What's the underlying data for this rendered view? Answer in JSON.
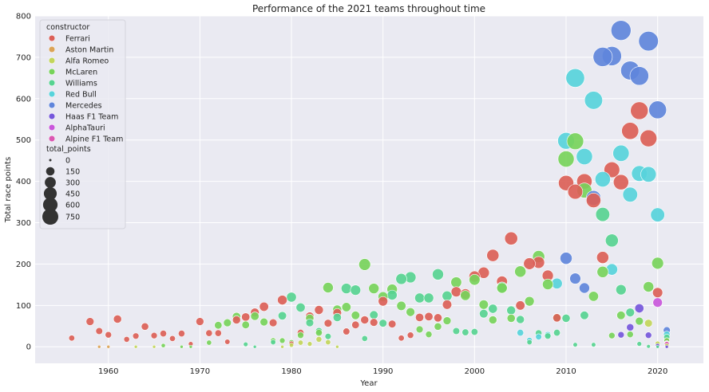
{
  "chart_data": {
    "type": "scatter",
    "title": "Performance of the 2021 teams throughout time",
    "xlabel": "Year",
    "ylabel": "Total race points",
    "xlim": [
      1952,
      2025
    ],
    "ylim": [
      -40,
      800
    ],
    "xticks": [
      1960,
      1970,
      1980,
      1990,
      2000,
      2010,
      2020
    ],
    "yticks": [
      0,
      100,
      200,
      300,
      400,
      500,
      600,
      700,
      800
    ],
    "grid": true,
    "background": "#eaeaf2",
    "legend": {
      "position": "top-left",
      "hue_title": "constructor",
      "size_title": "total_points",
      "size_values": [
        0,
        150,
        300,
        450,
        600,
        750
      ]
    },
    "series": [
      {
        "name": "Ferrari",
        "color": "#db5f57",
        "points": [
          [
            1956,
            21
          ],
          [
            1958,
            61
          ],
          [
            1959,
            38
          ],
          [
            1960,
            29
          ],
          [
            1961,
            67
          ],
          [
            1962,
            18
          ],
          [
            1963,
            26
          ],
          [
            1964,
            49
          ],
          [
            1965,
            27
          ],
          [
            1966,
            32
          ],
          [
            1967,
            20
          ],
          [
            1968,
            32
          ],
          [
            1969,
            7
          ],
          [
            1970,
            61
          ],
          [
            1971,
            33
          ],
          [
            1972,
            33
          ],
          [
            1973,
            12
          ],
          [
            1974,
            65
          ],
          [
            1975,
            72
          ],
          [
            1976,
            83
          ],
          [
            1977,
            97
          ],
          [
            1978,
            58
          ],
          [
            1979,
            113
          ],
          [
            1980,
            8
          ],
          [
            1981,
            34
          ],
          [
            1982,
            74
          ],
          [
            1983,
            89
          ],
          [
            1984,
            57
          ],
          [
            1985,
            82
          ],
          [
            1986,
            37
          ],
          [
            1987,
            53
          ],
          [
            1988,
            65
          ],
          [
            1989,
            59
          ],
          [
            1990,
            110
          ],
          [
            1991,
            55
          ],
          [
            1992,
            21
          ],
          [
            1993,
            28
          ],
          [
            1994,
            71
          ],
          [
            1995,
            73
          ],
          [
            1996,
            70
          ],
          [
            1997,
            102
          ],
          [
            1998,
            133
          ],
          [
            1999,
            128
          ],
          [
            2000,
            170
          ],
          [
            2001,
            179
          ],
          [
            2002,
            221
          ],
          [
            2003,
            158
          ],
          [
            2004,
            262
          ],
          [
            2005,
            100
          ],
          [
            2006,
            201
          ],
          [
            2007,
            204
          ],
          [
            2008,
            172
          ],
          [
            2009,
            70
          ],
          [
            2010,
            396
          ],
          [
            2011,
            375
          ],
          [
            2012,
            400
          ],
          [
            2013,
            354
          ],
          [
            2014,
            216
          ],
          [
            2015,
            428
          ],
          [
            2016,
            398
          ],
          [
            2017,
            522
          ],
          [
            2018,
            571
          ],
          [
            2019,
            504
          ],
          [
            2020,
            131
          ],
          [
            2021,
            15
          ]
        ]
      },
      {
        "name": "Aston Martin",
        "color": "#dba357",
        "points": [
          [
            1959,
            0
          ],
          [
            1960,
            0
          ],
          [
            2021,
            8
          ]
        ]
      },
      {
        "name": "Alfa Romeo",
        "color": "#c2d55b",
        "points": [
          [
            1963,
            0
          ],
          [
            1965,
            0
          ],
          [
            1979,
            0
          ],
          [
            1980,
            4
          ],
          [
            1981,
            10
          ],
          [
            1982,
            7
          ],
          [
            1983,
            18
          ],
          [
            1984,
            11
          ],
          [
            1985,
            0
          ],
          [
            2019,
            57
          ],
          [
            2020,
            8
          ],
          [
            2021,
            3
          ]
        ]
      },
      {
        "name": "McLaren",
        "color": "#77d35b",
        "points": [
          [
            1966,
            3
          ],
          [
            1968,
            0
          ],
          [
            1969,
            0
          ],
          [
            1971,
            10
          ],
          [
            1972,
            52
          ],
          [
            1973,
            58
          ],
          [
            1974,
            73
          ],
          [
            1975,
            53
          ],
          [
            1976,
            74
          ],
          [
            1977,
            60
          ],
          [
            1978,
            15
          ],
          [
            1979,
            15
          ],
          [
            1980,
            11
          ],
          [
            1981,
            28
          ],
          [
            1982,
            69
          ],
          [
            1983,
            34
          ],
          [
            1984,
            143
          ],
          [
            1985,
            90
          ],
          [
            1986,
            96
          ],
          [
            1987,
            76
          ],
          [
            1988,
            199
          ],
          [
            1989,
            141
          ],
          [
            1990,
            121
          ],
          [
            1991,
            139
          ],
          [
            1992,
            99
          ],
          [
            1993,
            84
          ],
          [
            1994,
            42
          ],
          [
            1995,
            30
          ],
          [
            1996,
            49
          ],
          [
            1997,
            63
          ],
          [
            1998,
            156
          ],
          [
            1999,
            124
          ],
          [
            2000,
            162
          ],
          [
            2001,
            102
          ],
          [
            2002,
            65
          ],
          [
            2003,
            142
          ],
          [
            2004,
            69
          ],
          [
            2005,
            182
          ],
          [
            2006,
            110
          ],
          [
            2007,
            218
          ],
          [
            2008,
            151
          ],
          [
            2009,
            71
          ],
          [
            2010,
            454
          ],
          [
            2011,
            497
          ],
          [
            2012,
            378
          ],
          [
            2013,
            122
          ],
          [
            2014,
            181
          ],
          [
            2015,
            27
          ],
          [
            2016,
            76
          ],
          [
            2017,
            30
          ],
          [
            2018,
            62
          ],
          [
            2019,
            145
          ],
          [
            2020,
            202
          ],
          [
            2021,
            15
          ]
        ]
      },
      {
        "name": "Williams",
        "color": "#57d391",
        "points": [
          [
            1975,
            6
          ],
          [
            1976,
            0
          ],
          [
            1978,
            11
          ],
          [
            1979,
            75
          ],
          [
            1980,
            120
          ],
          [
            1981,
            95
          ],
          [
            1982,
            58
          ],
          [
            1983,
            38
          ],
          [
            1984,
            25
          ],
          [
            1985,
            71
          ],
          [
            1986,
            141
          ],
          [
            1987,
            137
          ],
          [
            1988,
            20
          ],
          [
            1989,
            77
          ],
          [
            1990,
            57
          ],
          [
            1991,
            125
          ],
          [
            1992,
            164
          ],
          [
            1993,
            168
          ],
          [
            1994,
            118
          ],
          [
            1995,
            118
          ],
          [
            1996,
            175
          ],
          [
            1997,
            123
          ],
          [
            1998,
            38
          ],
          [
            1999,
            35
          ],
          [
            2000,
            36
          ],
          [
            2001,
            80
          ],
          [
            2002,
            92
          ],
          [
            2003,
            144
          ],
          [
            2004,
            88
          ],
          [
            2005,
            66
          ],
          [
            2006,
            11
          ],
          [
            2007,
            33
          ],
          [
            2008,
            26
          ],
          [
            2009,
            34
          ],
          [
            2010,
            69
          ],
          [
            2011,
            5
          ],
          [
            2012,
            76
          ],
          [
            2013,
            5
          ],
          [
            2014,
            320
          ],
          [
            2015,
            257
          ],
          [
            2016,
            138
          ],
          [
            2017,
            83
          ],
          [
            2018,
            7
          ],
          [
            2019,
            1
          ],
          [
            2020,
            0
          ],
          [
            2021,
            23
          ]
        ]
      },
      {
        "name": "Red Bull",
        "color": "#57d3db",
        "points": [
          [
            2005,
            34
          ],
          [
            2006,
            16
          ],
          [
            2007,
            24
          ],
          [
            2008,
            29
          ],
          [
            2009,
            153
          ],
          [
            2010,
            498
          ],
          [
            2011,
            650
          ],
          [
            2012,
            460
          ],
          [
            2013,
            596
          ],
          [
            2014,
            405
          ],
          [
            2015,
            187
          ],
          [
            2016,
            468
          ],
          [
            2017,
            368
          ],
          [
            2018,
            419
          ],
          [
            2019,
            417
          ],
          [
            2020,
            319
          ],
          [
            2021,
            30
          ]
        ]
      },
      {
        "name": "Mercedes",
        "color": "#5f85db",
        "points": [
          [
            2010,
            214
          ],
          [
            2011,
            165
          ],
          [
            2012,
            142
          ],
          [
            2013,
            360
          ],
          [
            2014,
            701
          ],
          [
            2015,
            703
          ],
          [
            2016,
            765
          ],
          [
            2017,
            668
          ],
          [
            2018,
            655
          ],
          [
            2019,
            739
          ],
          [
            2020,
            573
          ],
          [
            2021,
            40
          ]
        ]
      },
      {
        "name": "Haas F1 Team",
        "color": "#7557db",
        "points": [
          [
            2016,
            29
          ],
          [
            2017,
            47
          ],
          [
            2018,
            93
          ],
          [
            2019,
            28
          ],
          [
            2020,
            3
          ],
          [
            2021,
            0
          ]
        ]
      },
      {
        "name": "AlphaTauri",
        "color": "#c957db",
        "points": [
          [
            2020,
            107
          ],
          [
            2021,
            9
          ]
        ]
      },
      {
        "name": "Alpine F1 Team",
        "color": "#db57b2",
        "points": [
          [
            2021,
            7
          ]
        ]
      }
    ]
  }
}
